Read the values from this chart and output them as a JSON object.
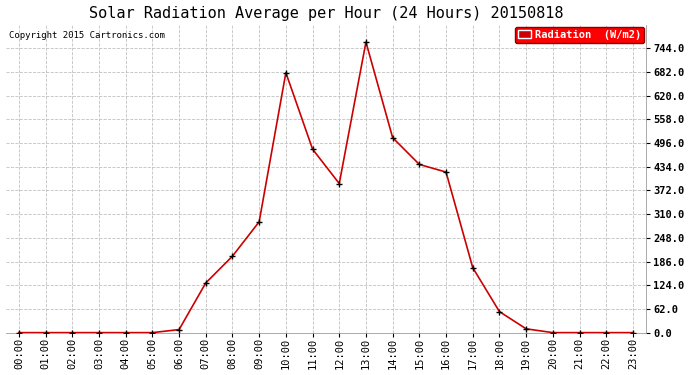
{
  "title": "Solar Radiation Average per Hour (24 Hours) 20150818",
  "copyright_text": "Copyright 2015 Cartronics.com",
  "legend_label": "Radiation  (W/m2)",
  "hours": [
    "00:00",
    "01:00",
    "02:00",
    "03:00",
    "04:00",
    "05:00",
    "06:00",
    "07:00",
    "08:00",
    "09:00",
    "10:00",
    "11:00",
    "12:00",
    "13:00",
    "14:00",
    "15:00",
    "16:00",
    "17:00",
    "18:00",
    "19:00",
    "20:00",
    "21:00",
    "22:00",
    "23:00"
  ],
  "values": [
    0.0,
    0.0,
    0.0,
    0.0,
    0.0,
    0.0,
    8.0,
    130.0,
    200.0,
    290.0,
    680.0,
    480.0,
    390.0,
    760.0,
    510.0,
    440.0,
    420.0,
    170.0,
    55.0,
    10.0,
    0.0,
    0.0,
    0.0,
    0.0
  ],
  "line_color": "#cc0000",
  "marker_color": "#000000",
  "bg_color": "#ffffff",
  "grid_color": "#c0c0c0",
  "ylim": [
    0,
    806
  ],
  "yticks": [
    0.0,
    62.0,
    124.0,
    186.0,
    248.0,
    310.0,
    372.0,
    434.0,
    496.0,
    558.0,
    620.0,
    682.0,
    744.0
  ],
  "title_fontsize": 11,
  "copyright_fontsize": 6.5,
  "legend_fontsize": 7.5,
  "tick_fontsize": 7.5,
  "fig_width": 6.9,
  "fig_height": 3.75,
  "dpi": 100
}
